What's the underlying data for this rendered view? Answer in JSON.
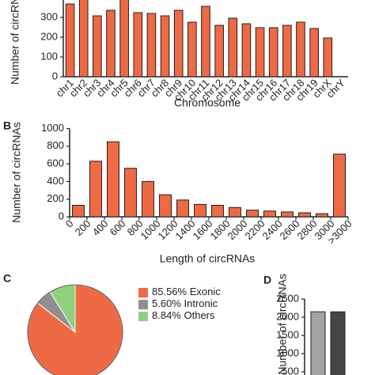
{
  "chart_data": [
    {
      "type": "bar",
      "y_label": "Number of circRNAs",
      "x_label": "Chromosome",
      "categories": [
        "chr1",
        "chr2",
        "chr3",
        "chr4",
        "chr5",
        "chr6",
        "chr7",
        "chr8",
        "chr9",
        "chr10",
        "chr11",
        "chr12",
        "chr13",
        "chr14",
        "chr15",
        "chr16",
        "chr17",
        "chr18",
        "chr19",
        "chrX",
        "chrY"
      ],
      "values": [
        368,
        400,
        308,
        336,
        400,
        324,
        320,
        308,
        336,
        276,
        356,
        260,
        296,
        268,
        248,
        248,
        260,
        276,
        244,
        196,
        0
      ],
      "color": "#ee6a45",
      "ylim": [
        0,
        400
      ],
      "yticks": [
        0,
        100,
        200,
        300
      ]
    },
    {
      "type": "histogram",
      "panel": "B",
      "y_label": "Number of circRNAs",
      "x_label": "Length of circRNAs",
      "bin_labels": [
        "0",
        "200",
        "400",
        "600",
        "800",
        "1000",
        "1200",
        "1400",
        "1600",
        "1800",
        "2000",
        "2200",
        "2400",
        "2600",
        "2800",
        "3000",
        ">3000"
      ],
      "values": [
        130,
        630,
        850,
        550,
        400,
        250,
        190,
        140,
        130,
        105,
        75,
        65,
        55,
        45,
        35,
        710
      ],
      "color": "#ee6a45",
      "ylim": [
        0,
        1000
      ],
      "yticks": [
        0,
        200,
        400,
        600,
        800,
        1000
      ]
    },
    {
      "type": "pie",
      "panel": "C",
      "categories": [
        "Exonic",
        "Intronic",
        "Others"
      ],
      "values": [
        85.56,
        5.6,
        8.84
      ],
      "value_labels": [
        "85.56%",
        "5.60%",
        "8.84%"
      ],
      "colors": [
        "#ee6a45",
        "#8f8f8f",
        "#8fd07c"
      ]
    },
    {
      "type": "bar",
      "panel": "D",
      "y_label": "Number of circRNAs",
      "categories": [
        null,
        null
      ],
      "values": [
        2150,
        2150
      ],
      "colors": [
        "#a3a3a3",
        "#454545"
      ],
      "ylim": [
        0,
        2500
      ],
      "yticks": [
        500,
        1000,
        1500,
        2000,
        2500
      ]
    }
  ]
}
